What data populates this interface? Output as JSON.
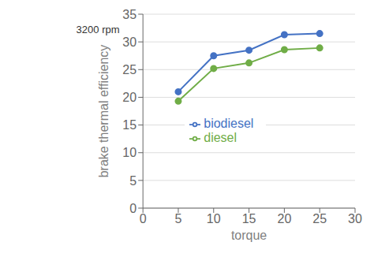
{
  "chart_data": {
    "type": "line",
    "x": [
      5,
      10,
      15,
      20,
      25
    ],
    "series": [
      {
        "name": "biodiesel",
        "color": "#4472C4",
        "values": [
          21.0,
          27.5,
          28.5,
          31.3,
          31.5
        ],
        "marker": "circle"
      },
      {
        "name": "diesel",
        "color": "#70AD47",
        "values": [
          19.3,
          25.2,
          26.2,
          28.6,
          28.9
        ],
        "marker": "circle"
      }
    ],
    "xlabel": "torque",
    "ylabel": "brake thermal efficiency",
    "xlim": [
      0,
      30
    ],
    "ylim": [
      0,
      35
    ],
    "xticks": [
      0,
      5,
      10,
      15,
      20,
      25,
      30
    ],
    "yticks": [
      0,
      5,
      10,
      15,
      20,
      25,
      30,
      35
    ],
    "annotation": "3200 rpm",
    "grid": true,
    "legend": "center"
  }
}
